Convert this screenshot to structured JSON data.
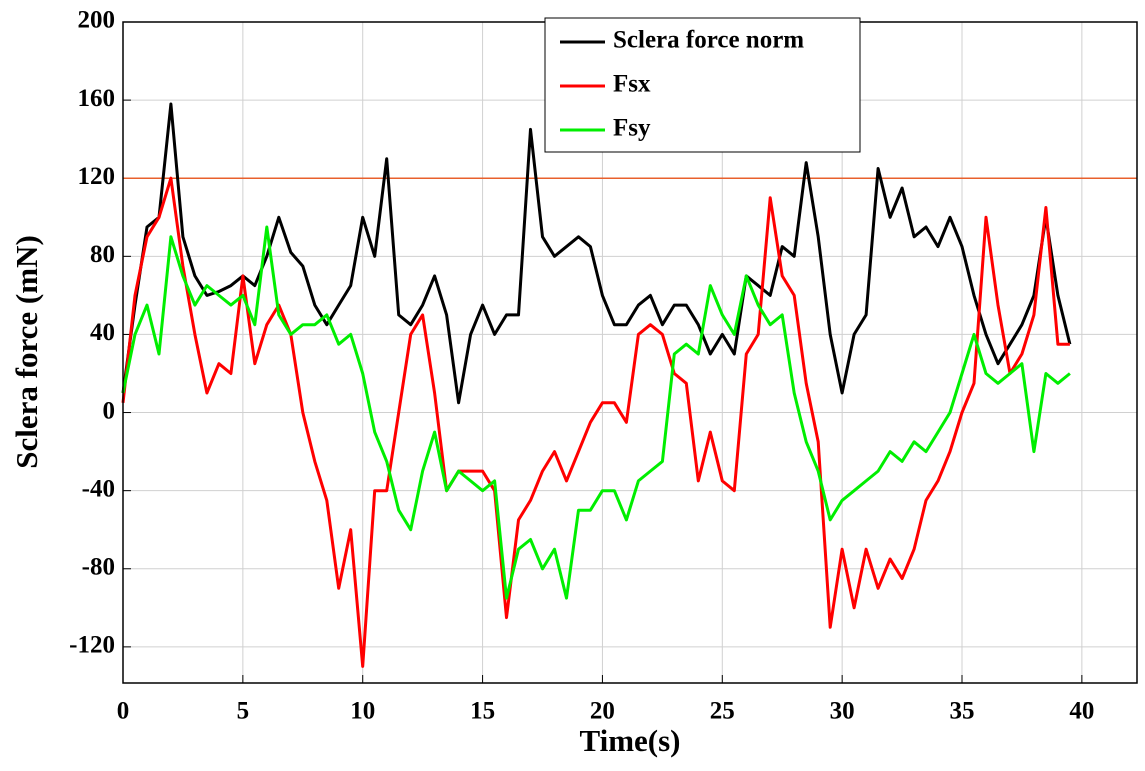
{
  "chart_data": {
    "type": "line",
    "x_label": "Time(s)",
    "y_label": "Sclera force (mN)",
    "x": [
      0,
      0.5,
      1,
      1.5,
      2,
      2.5,
      3,
      3.5,
      4,
      4.5,
      5,
      5.5,
      6,
      6.5,
      7,
      7.5,
      8,
      8.5,
      9,
      9.5,
      10,
      10.5,
      11,
      11.5,
      12,
      12.5,
      13,
      13.5,
      14,
      14.5,
      15,
      15.5,
      16,
      16.5,
      17,
      17.5,
      18,
      18.5,
      19,
      19.5,
      20,
      20.5,
      21,
      21.5,
      22,
      22.5,
      23,
      23.5,
      24,
      24.5,
      25,
      25.5,
      26,
      26.5,
      27,
      27.5,
      28,
      28.5,
      29,
      29.5,
      30,
      30.5,
      31,
      31.5,
      32,
      32.5,
      33,
      33.5,
      34,
      34.5,
      35,
      35.5,
      36,
      36.5,
      37,
      37.5,
      38,
      38.5,
      39,
      39.5
    ],
    "series": [
      {
        "name": "Sclera force norm",
        "color": "#000000",
        "values": [
          10,
          55,
          95,
          100,
          158,
          90,
          70,
          60,
          62,
          65,
          70,
          65,
          80,
          100,
          82,
          75,
          55,
          45,
          55,
          65,
          100,
          80,
          130,
          50,
          45,
          55,
          70,
          50,
          5,
          40,
          55,
          40,
          50,
          50,
          145,
          90,
          80,
          85,
          90,
          85,
          60,
          45,
          45,
          55,
          60,
          45,
          55,
          55,
          45,
          30,
          40,
          30,
          70,
          65,
          60,
          85,
          80,
          128,
          90,
          40,
          10,
          40,
          50,
          125,
          100,
          115,
          90,
          95,
          85,
          100,
          85,
          60,
          40,
          25,
          35,
          45,
          60,
          100,
          60,
          35
        ]
      },
      {
        "name": "Fsx",
        "color": "#ff0000",
        "values": [
          5,
          60,
          90,
          100,
          120,
          75,
          40,
          10,
          25,
          20,
          70,
          25,
          45,
          55,
          40,
          0,
          -25,
          -45,
          -90,
          -60,
          -130,
          -40,
          -40,
          0,
          40,
          50,
          10,
          -40,
          -30,
          -30,
          -30,
          -40,
          -105,
          -55,
          -45,
          -30,
          -20,
          -35,
          -20,
          -5,
          5,
          5,
          -5,
          40,
          45,
          40,
          20,
          15,
          -35,
          -10,
          -35,
          -40,
          30,
          40,
          110,
          70,
          60,
          15,
          -15,
          -110,
          -70,
          -100,
          -70,
          -90,
          -75,
          -85,
          -70,
          -45,
          -35,
          -20,
          0,
          15,
          100,
          55,
          20,
          30,
          50,
          105,
          35,
          35
        ]
      },
      {
        "name": "Fsy",
        "color": "#00ee00",
        "values": [
          10,
          40,
          55,
          30,
          90,
          70,
          55,
          65,
          60,
          55,
          60,
          45,
          95,
          50,
          40,
          45,
          45,
          50,
          35,
          40,
          20,
          -10,
          -25,
          -50,
          -60,
          -30,
          -10,
          -40,
          -30,
          -35,
          -40,
          -35,
          -95,
          -70,
          -65,
          -80,
          -70,
          -95,
          -50,
          -50,
          -40,
          -40,
          -55,
          -35,
          -30,
          -25,
          30,
          35,
          30,
          65,
          50,
          40,
          70,
          55,
          45,
          50,
          10,
          -15,
          -30,
          -55,
          -45,
          -40,
          -35,
          -30,
          -20,
          -25,
          -15,
          -20,
          -10,
          0,
          20,
          40,
          20,
          15,
          20,
          25,
          -20,
          20,
          15,
          20
        ]
      }
    ],
    "threshold": 120,
    "threshold_color": "#e8602c",
    "xlim": [
      0,
      42.3
    ],
    "ylim": [
      -138.5,
      200
    ],
    "xticks": [
      0,
      5,
      10,
      15,
      20,
      25,
      30,
      35,
      40
    ],
    "yticks": [
      -120,
      -80,
      -40,
      0,
      40,
      80,
      120,
      160,
      200
    ],
    "grid": true,
    "legend": "top-center"
  }
}
